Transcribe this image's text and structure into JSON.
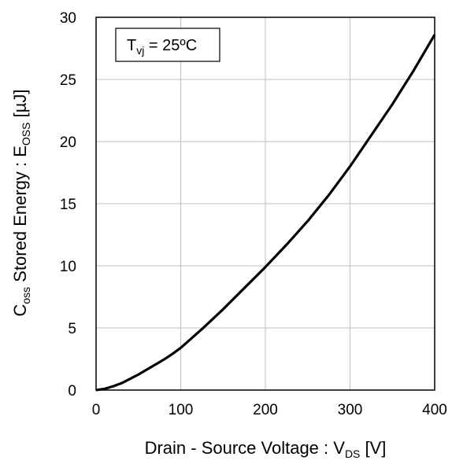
{
  "chart_data": {
    "type": "line",
    "title": "",
    "xlabel": {
      "main": "Drain - Source Voltage : V",
      "sub": "DS",
      "unit": " [V]"
    },
    "ylabel": {
      "pre": "C",
      "pre_sub": "oss",
      "main": " Stored Energy : E",
      "main_sub": "OSS",
      "unit": " [µJ]"
    },
    "annotation": {
      "main": "T",
      "sub": "vj",
      "rest": " = 25ºC"
    },
    "xlim": [
      0,
      400
    ],
    "ylim": [
      0,
      30
    ],
    "x_ticks": [
      0,
      100,
      200,
      300,
      400
    ],
    "y_ticks": [
      0,
      5,
      10,
      15,
      20,
      25,
      30
    ],
    "grid": true,
    "series": [
      {
        "x": [
          0,
          10,
          20,
          30,
          40,
          50,
          60,
          70,
          80,
          90,
          100,
          125,
          150,
          175,
          200,
          225,
          250,
          275,
          300,
          325,
          350,
          375,
          400
        ],
        "y": [
          0,
          0.1,
          0.3,
          0.55,
          0.9,
          1.25,
          1.65,
          2.05,
          2.45,
          2.9,
          3.4,
          4.9,
          6.5,
          8.2,
          9.9,
          11.7,
          13.6,
          15.7,
          18.0,
          20.5,
          23.0,
          25.7,
          28.6
        ]
      }
    ],
    "line_color": "#000000",
    "grid_color": "#bfbfbf"
  }
}
